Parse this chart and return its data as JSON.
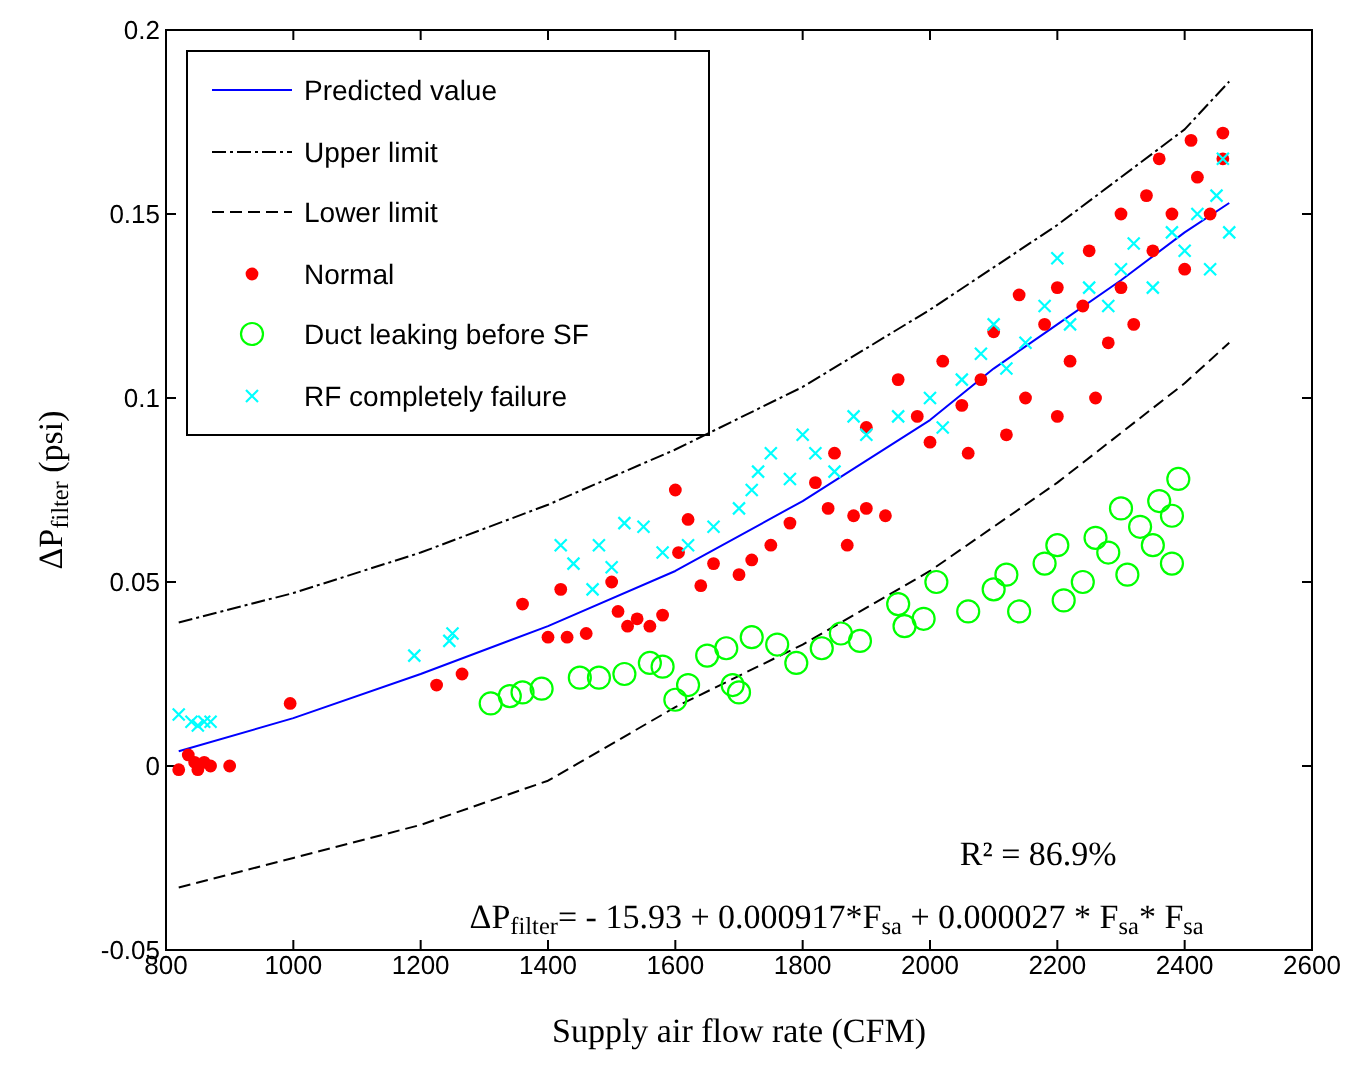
{
  "chart_data": {
    "type": "scatter",
    "xlabel": "Supply air flow rate (CFM)",
    "ylabel": "ΔP$_{filter}$ (psi)",
    "xlim": [
      800,
      2600
    ],
    "xticks": [
      800,
      1000,
      1200,
      1400,
      1600,
      1800,
      2000,
      2200,
      2400,
      2600
    ],
    "ylim": [
      -0.05,
      0.2
    ],
    "yticks": [
      -0.05,
      0,
      0.05,
      0.1,
      0.15,
      0.2
    ],
    "grid": false,
    "legend": "top left",
    "annotations": [
      "R² =  86.9%",
      "ΔP$_{filter}$= - 15.93 + 0.000917*F$_{sa}$ + 0.000027 * F$_{sa}$* F$_{sa}$"
    ],
    "series": [
      {
        "name": "Predicted value",
        "type": "line",
        "color": "#0000ff",
        "line_style": "solid",
        "marker": "none",
        "x": [
          820,
          1000,
          1200,
          1400,
          1600,
          1800,
          2000,
          2100,
          2200,
          2300,
          2400,
          2470
        ],
        "values": [
          0.004,
          0.013,
          0.025,
          0.038,
          0.053,
          0.072,
          0.094,
          0.108,
          0.12,
          0.132,
          0.145,
          0.153
        ]
      },
      {
        "name": "Upper limit",
        "type": "line",
        "color": "#000000",
        "line_style": "dashdot",
        "marker": "none",
        "x": [
          820,
          1000,
          1200,
          1400,
          1600,
          1800,
          2000,
          2200,
          2400,
          2470
        ],
        "values": [
          0.039,
          0.047,
          0.058,
          0.071,
          0.086,
          0.103,
          0.124,
          0.147,
          0.173,
          0.186
        ]
      },
      {
        "name": "Lower limit",
        "type": "line",
        "color": "#000000",
        "line_style": "dashed",
        "marker": "none",
        "x": [
          820,
          1000,
          1200,
          1400,
          1600,
          1800,
          2000,
          2200,
          2400,
          2470
        ],
        "values": [
          -0.033,
          -0.025,
          -0.016,
          -0.004,
          0.016,
          0.033,
          0.053,
          0.077,
          0.104,
          0.115
        ]
      },
      {
        "name": "Normal",
        "type": "scatter",
        "color": "#ff0000",
        "marker": "dot",
        "x": [
          820,
          835,
          845,
          850,
          860,
          870,
          900,
          995,
          1225,
          1265,
          1360,
          1400,
          1420,
          1430,
          1460,
          1500,
          1510,
          1525,
          1540,
          1560,
          1580,
          1600,
          1605,
          1620,
          1640,
          1660,
          1700,
          1720,
          1750,
          1780,
          1820,
          1840,
          1870,
          1880,
          1900,
          1930,
          1850,
          1900,
          1950,
          1980,
          2000,
          2020,
          2050,
          2060,
          2080,
          2100,
          2120,
          2140,
          2150,
          2180,
          2200,
          2200,
          2220,
          2240,
          2250,
          2260,
          2280,
          2300,
          2300,
          2320,
          2340,
          2350,
          2360,
          2380,
          2400,
          2410,
          2420,
          2440,
          2460,
          2460
        ],
        "values": [
          -0.001,
          0.003,
          0.001,
          -0.001,
          0.001,
          0,
          0,
          0.017,
          0.022,
          0.025,
          0.044,
          0.035,
          0.048,
          0.035,
          0.036,
          0.05,
          0.042,
          0.038,
          0.04,
          0.038,
          0.041,
          0.075,
          0.058,
          0.067,
          0.049,
          0.055,
          0.052,
          0.056,
          0.06,
          0.066,
          0.077,
          0.07,
          0.06,
          0.068,
          0.07,
          0.068,
          0.085,
          0.092,
          0.105,
          0.095,
          0.088,
          0.11,
          0.098,
          0.085,
          0.105,
          0.118,
          0.09,
          0.128,
          0.1,
          0.12,
          0.13,
          0.095,
          0.11,
          0.125,
          0.14,
          0.1,
          0.115,
          0.15,
          0.13,
          0.12,
          0.155,
          0.14,
          0.165,
          0.15,
          0.135,
          0.17,
          0.16,
          0.15,
          0.165,
          0.172
        ]
      },
      {
        "name": "Duct leaking before SF",
        "type": "scatter",
        "color": "#00ff00",
        "marker": "circle",
        "x": [
          1310,
          1340,
          1360,
          1390,
          1450,
          1480,
          1520,
          1560,
          1580,
          1600,
          1620,
          1650,
          1680,
          1690,
          1700,
          1720,
          1760,
          1790,
          1830,
          1860,
          1890,
          1950,
          1960,
          1990,
          2010,
          2060,
          2100,
          2120,
          2140,
          2180,
          2200,
          2210,
          2240,
          2260,
          2280,
          2300,
          2310,
          2330,
          2350,
          2360,
          2380,
          2390,
          2380
        ],
        "values": [
          0.017,
          0.019,
          0.02,
          0.021,
          0.024,
          0.024,
          0.025,
          0.028,
          0.027,
          0.018,
          0.022,
          0.03,
          0.032,
          0.022,
          0.02,
          0.035,
          0.033,
          0.028,
          0.032,
          0.036,
          0.034,
          0.044,
          0.038,
          0.04,
          0.05,
          0.042,
          0.048,
          0.052,
          0.042,
          0.055,
          0.06,
          0.045,
          0.05,
          0.062,
          0.058,
          0.07,
          0.052,
          0.065,
          0.06,
          0.072,
          0.068,
          0.078,
          0.055
        ]
      },
      {
        "name": "RF completely failure",
        "type": "scatter",
        "color": "#00ffff",
        "marker": "cross",
        "x": [
          820,
          840,
          850,
          860,
          870,
          1190,
          1245,
          1250,
          1420,
          1440,
          1470,
          1480,
          1500,
          1520,
          1550,
          1580,
          1620,
          1660,
          1700,
          1720,
          1730,
          1750,
          1780,
          1800,
          1820,
          1850,
          1880,
          1900,
          1950,
          2000,
          2020,
          2050,
          2080,
          2100,
          2120,
          2150,
          2180,
          2200,
          2220,
          2250,
          2280,
          2300,
          2320,
          2350,
          2380,
          2400,
          2420,
          2440,
          2450,
          2470,
          2460
        ],
        "values": [
          0.014,
          0.012,
          0.011,
          0.012,
          0.012,
          0.03,
          0.034,
          0.036,
          0.06,
          0.055,
          0.048,
          0.06,
          0.054,
          0.066,
          0.065,
          0.058,
          0.06,
          0.065,
          0.07,
          0.075,
          0.08,
          0.085,
          0.078,
          0.09,
          0.085,
          0.08,
          0.095,
          0.09,
          0.095,
          0.1,
          0.092,
          0.105,
          0.112,
          0.12,
          0.108,
          0.115,
          0.125,
          0.138,
          0.12,
          0.13,
          0.125,
          0.135,
          0.142,
          0.13,
          0.145,
          0.14,
          0.15,
          0.135,
          0.155,
          0.145,
          0.165
        ]
      }
    ]
  }
}
